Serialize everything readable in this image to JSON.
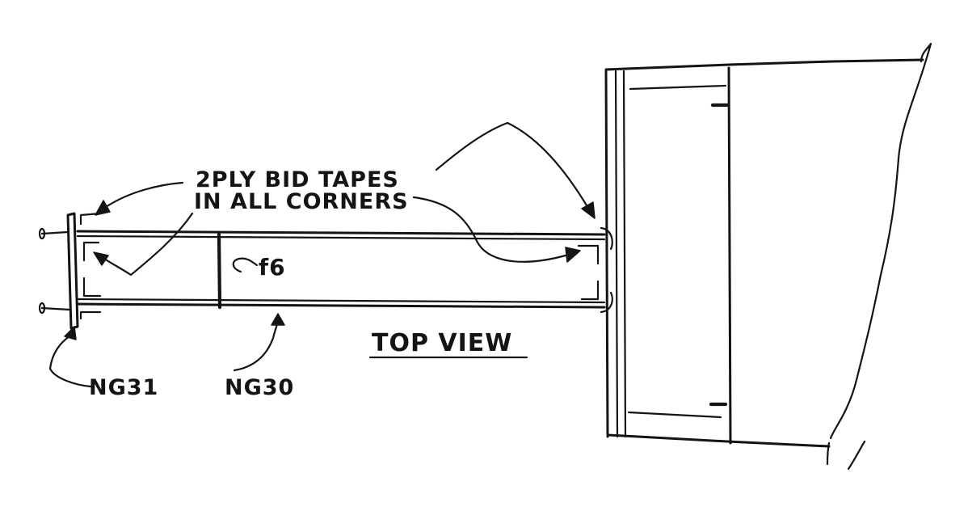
{
  "notes": {
    "line1": "2PLY BID TAPES",
    "line2": "IN ALL CORNERS"
  },
  "labels": {
    "ply": "f6",
    "part_left": "NG31",
    "part_beam": "NG30",
    "view": "TOP VIEW"
  }
}
